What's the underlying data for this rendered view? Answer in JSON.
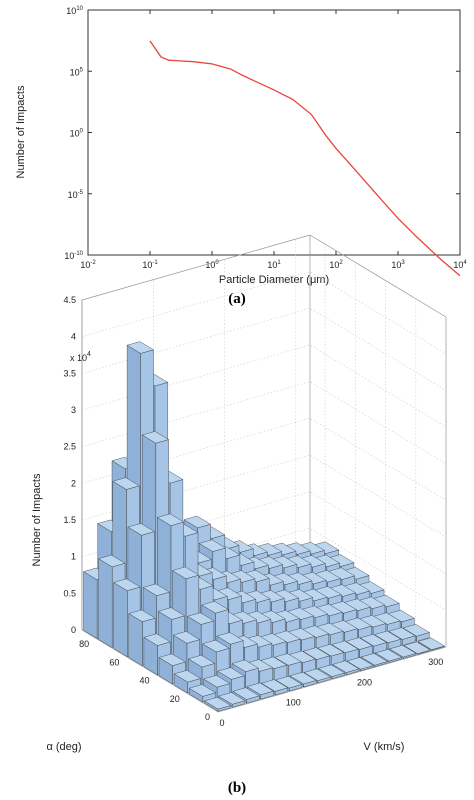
{
  "chart_data": [
    {
      "type": "line",
      "panel_label": "(a)",
      "xlabel": "Particle Diameter (μm)",
      "ylabel": "Number of Impacts",
      "xscale": "log",
      "yscale": "log",
      "xlim": [
        0.01,
        10000
      ],
      "ylim": [
        1e-10,
        10000000000.0
      ],
      "x_ticks": [
        {
          "value": 0.01,
          "base": "10",
          "exp": "-2"
        },
        {
          "value": 0.1,
          "base": "10",
          "exp": "-1"
        },
        {
          "value": 1,
          "base": "10",
          "exp": "0"
        },
        {
          "value": 10,
          "base": "10",
          "exp": "1"
        },
        {
          "value": 100,
          "base": "10",
          "exp": "2"
        },
        {
          "value": 1000,
          "base": "10",
          "exp": "3"
        },
        {
          "value": 10000,
          "base": "10",
          "exp": "4"
        }
      ],
      "y_ticks": [
        {
          "value": 1e-10,
          "base": "10",
          "exp": "-10"
        },
        {
          "value": 1e-05,
          "base": "10",
          "exp": "-5"
        },
        {
          "value": 1,
          "base": "10",
          "exp": "0"
        },
        {
          "value": 100000.0,
          "base": "10",
          "exp": "5"
        },
        {
          "value": 10000000000.0,
          "base": "10",
          "exp": "10"
        }
      ],
      "grid": false,
      "line_color": "#e8453c",
      "x": [
        0.1,
        0.15,
        0.2,
        0.3,
        0.5,
        1,
        2,
        3,
        5,
        10,
        20,
        40,
        70,
        100,
        200,
        500,
        1000,
        2000,
        5000,
        10000
      ],
      "y": [
        30000000,
        1500000,
        800000,
        700000,
        600000,
        400000,
        150000,
        50000,
        15000,
        3000,
        500,
        30,
        0.5,
        0.05,
        0.001,
        5e-06,
        1e-07,
        3e-09,
        4e-11,
        2e-12
      ]
    },
    {
      "type": "bar3d",
      "panel_label": "(b)",
      "xlabel": "V (km/s)",
      "ylabel": "α (deg)",
      "zlabel": "Number of Impacts",
      "z_multiplier": "x 10",
      "z_multiplier_exp": "4",
      "xlim": [
        0,
        320
      ],
      "ylim": [
        0,
        90
      ],
      "zlim": [
        0,
        45000
      ],
      "x_ticks": [
        "0",
        "100",
        "200",
        "300"
      ],
      "y_ticks": [
        "0",
        "20",
        "40",
        "60",
        "80"
      ],
      "z_ticks": [
        "0",
        "0.5",
        "1",
        "1.5",
        "2",
        "2.5",
        "3",
        "3.5",
        "4",
        "4.5"
      ],
      "grid": true,
      "bar_color": "#bcd6f0",
      "x_bin_width_kms": 20,
      "y_bin_width_deg": 10,
      "v_bin_centers": [
        10,
        30,
        50,
        70,
        90,
        110,
        130,
        150,
        170,
        190,
        210,
        230,
        250,
        270,
        290,
        310
      ],
      "alpha_bin_centers": [
        5,
        15,
        25,
        35,
        45,
        55,
        65,
        75,
        85
      ],
      "counts_by_v_bin": [
        [
          300,
          800,
          1500,
          2500,
          4000,
          6000,
          9000,
          11000,
          8000
        ],
        [
          400,
          1500,
          3000,
          5000,
          7000,
          9000,
          16000,
          21000,
          14000
        ],
        [
          500,
          2000,
          4500,
          7000,
          12000,
          18000,
          28000,
          39000,
          22000
        ],
        [
          600,
          2500,
          5000,
          8000,
          10000,
          16000,
          22000,
          34000,
          19000
        ],
        [
          500,
          2000,
          4000,
          6000,
          8000,
          10000,
          12000,
          12000,
          9000
        ],
        [
          400,
          1800,
          3500,
          5500,
          7500,
          9000,
          10000,
          11000,
          8000
        ],
        [
          400,
          1700,
          3200,
          5000,
          6500,
          8000,
          11000,
          13000,
          9000
        ],
        [
          300,
          1500,
          3000,
          4500,
          6000,
          7500,
          9500,
          11000,
          8500
        ],
        [
          300,
          1400,
          2800,
          4000,
          5500,
          7000,
          8000,
          9000,
          7000
        ],
        [
          300,
          1300,
          2600,
          3800,
          5000,
          6000,
          7000,
          8000,
          6000
        ],
        [
          200,
          1200,
          2400,
          3500,
          4500,
          5500,
          6500,
          7000,
          5500
        ],
        [
          200,
          1100,
          2200,
          3200,
          4000,
          5000,
          6000,
          6500,
          5000
        ],
        [
          200,
          1000,
          2000,
          3000,
          3800,
          4500,
          5500,
          6000,
          4500
        ],
        [
          200,
          900,
          1800,
          2800,
          3500,
          4200,
          5000,
          5500,
          4000
        ],
        [
          100,
          800,
          1600,
          2500,
          3200,
          4000,
          4500,
          5000,
          3500
        ],
        [
          100,
          700,
          1400,
          2200,
          2800,
          3500,
          4000,
          4500,
          3000
        ]
      ]
    }
  ]
}
